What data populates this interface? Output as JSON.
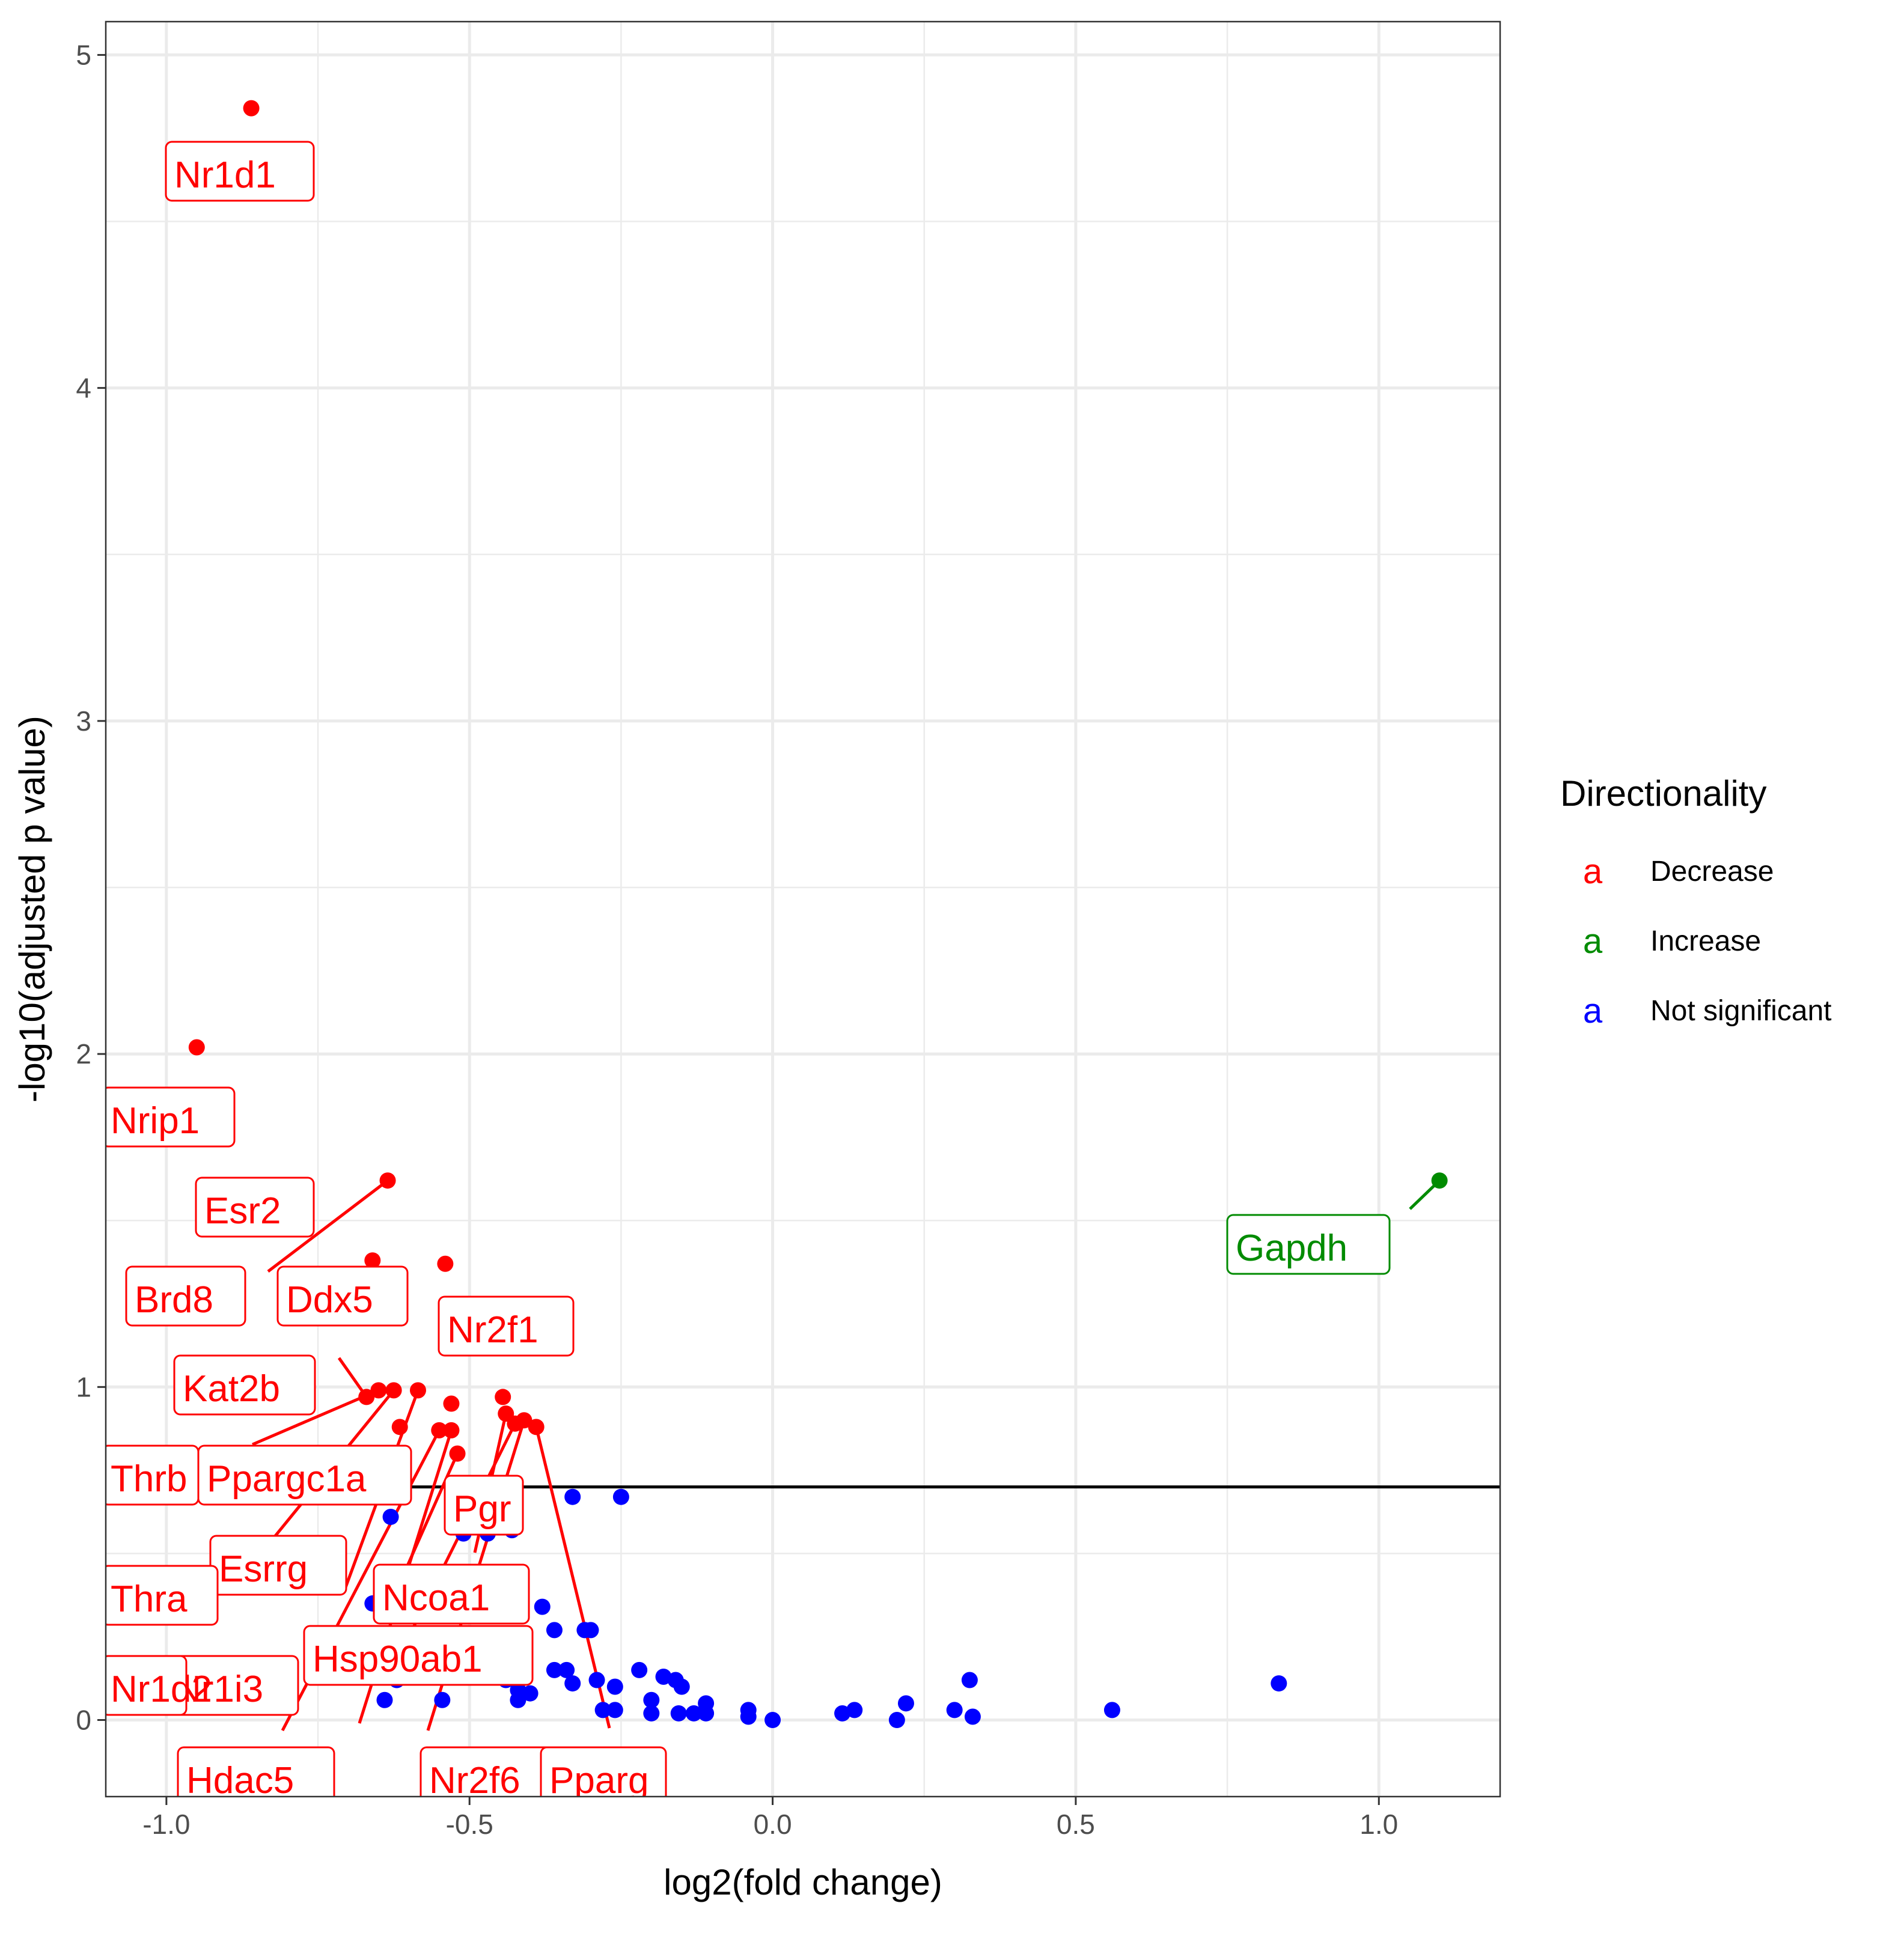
{
  "colors": {
    "decrease": "#ff0000",
    "increase": "#008b00",
    "not_significant": "#0000ff",
    "grid": "#ebebeb",
    "panel_border": "#333333",
    "threshold": "#000000"
  },
  "chart_data": {
    "type": "scatter",
    "xlabel": "log2(fold change)",
    "ylabel": "-log10(adjusted p value)",
    "xlim": [
      -1.1,
      1.2
    ],
    "ylim": [
      -0.23,
      5.1
    ],
    "x_ticks": [
      -1.0,
      -0.5,
      0.0,
      0.5,
      1.0
    ],
    "x_tick_labels": [
      "-1.0",
      "-0.5",
      "0.0",
      "0.5",
      "1.0"
    ],
    "y_ticks": [
      0,
      1,
      2,
      3,
      4,
      5
    ],
    "y_tick_labels": [
      "0",
      "1",
      "2",
      "3",
      "4",
      "5"
    ],
    "grid": true,
    "threshold_y": 0.7,
    "legend": {
      "title": "Directionality",
      "placement": "right",
      "key_glyph": "a",
      "items": [
        {
          "key": "decrease",
          "label": "Decrease"
        },
        {
          "key": "increase",
          "label": "Increase"
        },
        {
          "key": "not_significant",
          "label": "Not significant"
        }
      ]
    },
    "series": [
      {
        "key": "decrease",
        "points": [
          {
            "x": -0.86,
            "y": 4.84,
            "label": "Nr1d1"
          },
          {
            "x": -0.95,
            "y": 2.02,
            "label": "Nrip1"
          },
          {
            "x": -0.635,
            "y": 1.62,
            "label": "Esr2"
          },
          {
            "x": -0.66,
            "y": 1.38,
            "label": "Brd8"
          },
          {
            "x": -0.54,
            "y": 1.37,
            "label": "Ddx5"
          },
          {
            "x": -0.67,
            "y": 0.97,
            "label": "Kat2b"
          },
          {
            "x": -0.65,
            "y": 0.99,
            "label": "Thrb"
          },
          {
            "x": -0.625,
            "y": 0.99,
            "label": "Ppargc1a"
          },
          {
            "x": -0.585,
            "y": 0.99,
            "label": "Esrrg"
          },
          {
            "x": -0.615,
            "y": 0.88,
            "label": "Thra"
          },
          {
            "x": -0.55,
            "y": 0.87,
            "label": "Nr1i3"
          },
          {
            "x": -0.53,
            "y": 0.87,
            "label": "Hdac5"
          },
          {
            "x": -0.53,
            "y": 0.95,
            "label": "Nr1d2"
          },
          {
            "x": -0.52,
            "y": 0.8,
            "label": "Ncoa1"
          },
          {
            "x": -0.445,
            "y": 0.97,
            "label": "Nr2f1"
          },
          {
            "x": -0.44,
            "y": 0.92,
            "label": "Pgr"
          },
          {
            "x": -0.425,
            "y": 0.89,
            "label": "Hsp90ab1"
          },
          {
            "x": -0.41,
            "y": 0.9,
            "label": "Nr2f6"
          },
          {
            "x": -0.39,
            "y": 0.88,
            "label": "Pparg"
          }
        ]
      },
      {
        "key": "increase",
        "points": [
          {
            "x": 1.1,
            "y": 1.62,
            "label": "Gapdh"
          }
        ]
      },
      {
        "key": "not_significant",
        "points": [
          {
            "x": -0.33,
            "y": 0.67
          },
          {
            "x": -0.25,
            "y": 0.67
          },
          {
            "x": -0.63,
            "y": 0.61
          },
          {
            "x": -0.51,
            "y": 0.56
          },
          {
            "x": -0.47,
            "y": 0.56
          },
          {
            "x": -0.43,
            "y": 0.57
          },
          {
            "x": -0.66,
            "y": 0.35
          },
          {
            "x": -0.38,
            "y": 0.34
          },
          {
            "x": -0.36,
            "y": 0.27
          },
          {
            "x": -0.31,
            "y": 0.27
          },
          {
            "x": -0.3,
            "y": 0.27
          },
          {
            "x": -0.36,
            "y": 0.15
          },
          {
            "x": -0.34,
            "y": 0.15
          },
          {
            "x": -0.33,
            "y": 0.11
          },
          {
            "x": -0.29,
            "y": 0.12
          },
          {
            "x": -0.26,
            "y": 0.1
          },
          {
            "x": -0.22,
            "y": 0.15
          },
          {
            "x": -0.18,
            "y": 0.13
          },
          {
            "x": -0.16,
            "y": 0.12
          },
          {
            "x": -0.15,
            "y": 0.1
          },
          {
            "x": -0.44,
            "y": 0.12
          },
          {
            "x": -0.42,
            "y": 0.09
          },
          {
            "x": -0.4,
            "y": 0.08
          },
          {
            "x": -0.42,
            "y": 0.06
          },
          {
            "x": -0.62,
            "y": 0.12
          },
          {
            "x": -0.64,
            "y": 0.06
          },
          {
            "x": -0.545,
            "y": 0.06
          },
          {
            "x": -0.28,
            "y": 0.03
          },
          {
            "x": -0.26,
            "y": 0.03
          },
          {
            "x": -0.2,
            "y": 0.06
          },
          {
            "x": -0.2,
            "y": 0.02
          },
          {
            "x": -0.155,
            "y": 0.02
          },
          {
            "x": -0.13,
            "y": 0.02
          },
          {
            "x": -0.11,
            "y": 0.05
          },
          {
            "x": -0.11,
            "y": 0.02
          },
          {
            "x": -0.04,
            "y": 0.03
          },
          {
            "x": -0.04,
            "y": 0.01
          },
          {
            "x": 0.0,
            "y": 0.0
          },
          {
            "x": 0.115,
            "y": 0.02
          },
          {
            "x": 0.135,
            "y": 0.03
          },
          {
            "x": 0.205,
            "y": 0.0
          },
          {
            "x": 0.22,
            "y": 0.05
          },
          {
            "x": 0.3,
            "y": 0.03
          },
          {
            "x": 0.325,
            "y": 0.12
          },
          {
            "x": 0.33,
            "y": 0.01
          },
          {
            "x": 0.56,
            "y": 0.03
          },
          {
            "x": 0.835,
            "y": 0.11
          }
        ]
      }
    ]
  }
}
